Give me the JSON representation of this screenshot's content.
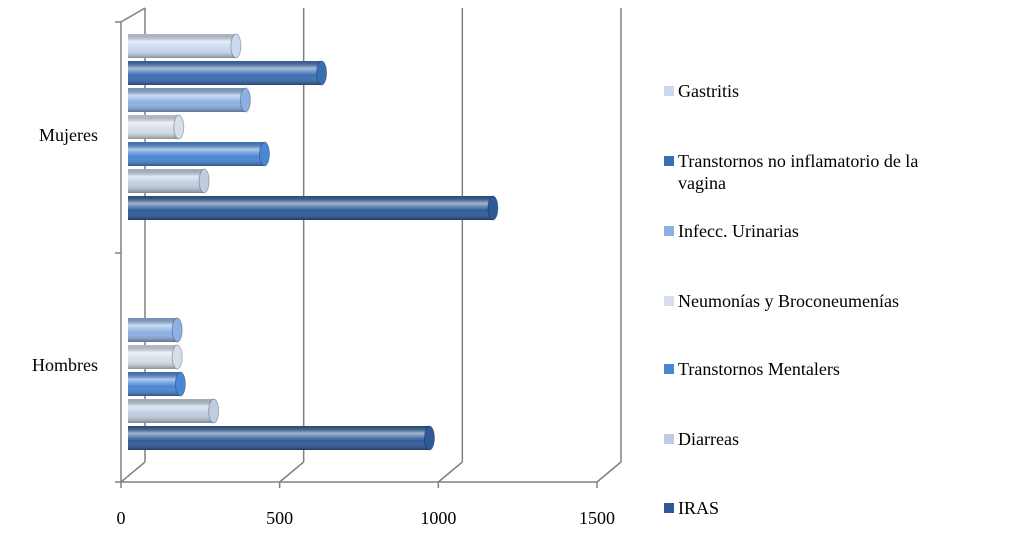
{
  "chart_data": {
    "type": "bar",
    "orientation": "horizontal",
    "style": "3d-cylinder",
    "categories": [
      "Mujeres",
      "Hombres"
    ],
    "series": [
      {
        "name": "IRAS",
        "color": "#2e5b98",
        "values": [
          1150,
          950
        ]
      },
      {
        "name": "Diarreas",
        "color": "#bfcde2",
        "values": [
          240,
          270
        ]
      },
      {
        "name": "Transtornos Mentalers",
        "color": "#4a86d6",
        "values": [
          430,
          165
        ]
      },
      {
        "name": "Neumonías y Broconeumenías",
        "color": "#d6dee9",
        "values": [
          160,
          155
        ]
      },
      {
        "name": "Infecc. Urinarias",
        "color": "#8cb0e2",
        "values": [
          370,
          155
        ]
      },
      {
        "name": "Transtornos no inflamatorio de la vagina",
        "color": "#3a6eb2",
        "values": [
          610,
          null
        ]
      },
      {
        "name": "Gastritis",
        "color": "#cad9f0",
        "values": [
          340,
          null
        ]
      }
    ],
    "xlim": [
      0,
      1500
    ],
    "xticks": [
      0,
      500,
      1000,
      1500
    ],
    "grid": true,
    "legend": "right"
  }
}
